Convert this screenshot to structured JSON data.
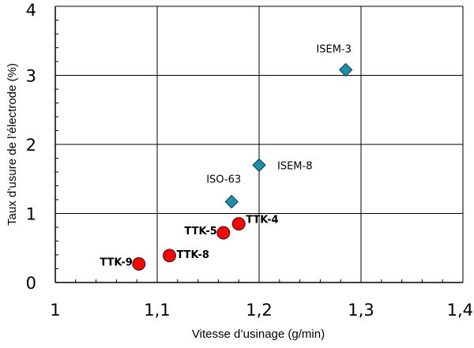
{
  "chart_data": {
    "type": "scatter",
    "title": "",
    "xlabel": "Vitesse d’usinage (g/min)",
    "ylabel": "Taux d’usure de l’électrode (%)",
    "xlim": [
      1.0,
      1.4
    ],
    "ylim": [
      0,
      4
    ],
    "x_ticks": [
      "1",
      "1,1",
      "1,2",
      "1,3",
      "1,4"
    ],
    "y_ticks": [
      "0",
      "1",
      "2",
      "3",
      "4"
    ],
    "grid": true,
    "legend": "none",
    "series": [
      {
        "marker": "diamond",
        "color": "#1f8fa8",
        "points": [
          {
            "label": "ISEM-3",
            "x": 1.285,
            "y": 3.08
          },
          {
            "label": "ISEM-8",
            "x": 1.2,
            "y": 1.7
          },
          {
            "label": "ISO-63",
            "x": 1.173,
            "y": 1.17
          }
        ]
      },
      {
        "marker": "circle",
        "color": "#ff0000",
        "points": [
          {
            "label": "TTK-4",
            "x": 1.18,
            "y": 0.85
          },
          {
            "label": "TTK-5",
            "x": 1.165,
            "y": 0.72
          },
          {
            "label": "TTK-8",
            "x": 1.112,
            "y": 0.39
          },
          {
            "label": "TTK-9",
            "x": 1.082,
            "y": 0.27
          }
        ]
      }
    ]
  }
}
